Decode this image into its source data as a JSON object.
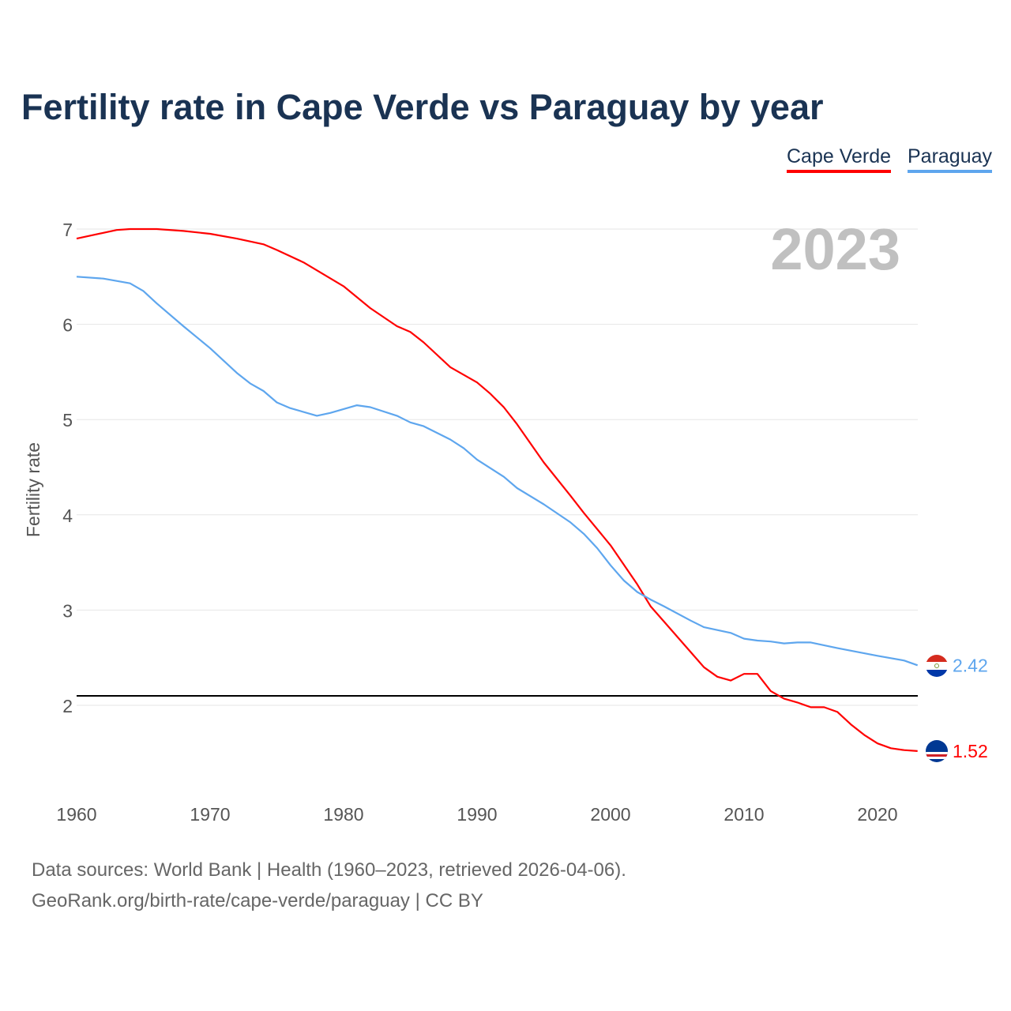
{
  "chart_data": {
    "type": "line",
    "title": "Fertility rate in Cape Verde vs Paraguay by year",
    "xlabel": "",
    "ylabel": "Fertility rate",
    "xlim": [
      1960,
      2023
    ],
    "ylim": [
      1.2,
      7.2
    ],
    "xticks": [
      1960,
      1970,
      1980,
      1990,
      2000,
      2010,
      2020
    ],
    "yticks": [
      2,
      3,
      4,
      5,
      6,
      7
    ],
    "grid": true,
    "legend_position": "top-right",
    "year_label": "2023",
    "reference_line": {
      "y": 2.1,
      "color": "#000000"
    },
    "series": [
      {
        "name": "Cape Verde",
        "color": "#ff0000",
        "end_label": "1.52",
        "x": [
          1960,
          1963,
          1964,
          1966,
          1968,
          1970,
          1972,
          1974,
          1975,
          1977,
          1980,
          1982,
          1984,
          1985,
          1986,
          1988,
          1990,
          1991,
          1992,
          1993,
          1995,
          1997,
          1998,
          2000,
          2002,
          2003,
          2004,
          2006,
          2007,
          2008,
          2009,
          2010,
          2011,
          2012,
          2013,
          2014,
          2015,
          2016,
          2017,
          2018,
          2019,
          2020,
          2021,
          2022,
          2023
        ],
        "y": [
          6.9,
          6.99,
          7.0,
          7.0,
          6.98,
          6.95,
          6.9,
          6.84,
          6.78,
          6.65,
          6.4,
          6.17,
          5.98,
          5.92,
          5.81,
          5.55,
          5.39,
          5.27,
          5.13,
          4.95,
          4.55,
          4.2,
          4.02,
          3.68,
          3.27,
          3.04,
          2.88,
          2.56,
          2.4,
          2.3,
          2.26,
          2.33,
          2.33,
          2.15,
          2.07,
          2.03,
          1.98,
          1.98,
          1.93,
          1.8,
          1.69,
          1.6,
          1.55,
          1.53,
          1.52
        ]
      },
      {
        "name": "Paraguay",
        "color": "#5ea6ee",
        "end_label": "2.42",
        "x": [
          1960,
          1962,
          1964,
          1965,
          1966,
          1968,
          1970,
          1972,
          1973,
          1974,
          1975,
          1976,
          1978,
          1979,
          1980,
          1981,
          1982,
          1984,
          1985,
          1986,
          1988,
          1989,
          1990,
          1992,
          1993,
          1995,
          1997,
          1998,
          1999,
          2000,
          2001,
          2002,
          2003,
          2004,
          2006,
          2007,
          2009,
          2010,
          2011,
          2012,
          2013,
          2014,
          2015,
          2017,
          2020,
          2022,
          2023
        ],
        "y": [
          6.5,
          6.48,
          6.43,
          6.35,
          6.22,
          5.98,
          5.75,
          5.49,
          5.38,
          5.3,
          5.18,
          5.12,
          5.04,
          5.07,
          5.11,
          5.15,
          5.13,
          5.04,
          4.97,
          4.93,
          4.79,
          4.7,
          4.58,
          4.4,
          4.28,
          4.11,
          3.92,
          3.8,
          3.65,
          3.47,
          3.31,
          3.19,
          3.11,
          3.04,
          2.89,
          2.82,
          2.76,
          2.7,
          2.68,
          2.67,
          2.65,
          2.66,
          2.66,
          2.6,
          2.52,
          2.47,
          2.42
        ]
      }
    ]
  },
  "footer": {
    "sources": "Data sources: World Bank | Health (1960–2023, retrieved 2026-04-06).",
    "credit": "GeoRank.org/birth-rate/cape-verde/paraguay | CC BY"
  }
}
